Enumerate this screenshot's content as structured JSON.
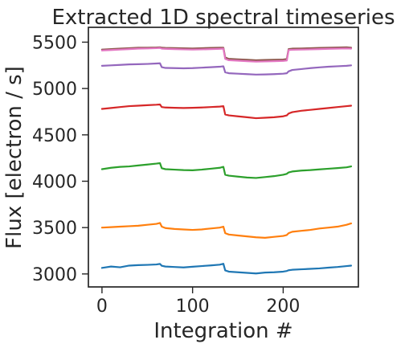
{
  "chart_data": {
    "type": "line",
    "title": "Extracted 1D spectral timeseries",
    "xlabel": "Integration #",
    "ylabel": "Flux [electron / s]",
    "xlim": [
      -15,
      283
    ],
    "ylim": [
      2860,
      5660
    ],
    "x_ticks": [
      0,
      100,
      200
    ],
    "y_ticks": [
      3000,
      3500,
      4000,
      4500,
      5000,
      5500
    ],
    "grid": false,
    "legend": "none",
    "series": [
      {
        "color": "#1f77b4",
        "x": [
          0,
          10,
          20,
          30,
          40,
          50,
          60,
          64,
          66,
          70,
          80,
          90,
          100,
          110,
          120,
          130,
          134,
          136,
          140,
          150,
          160,
          170,
          180,
          190,
          200,
          204,
          206,
          210,
          220,
          230,
          240,
          250,
          260,
          270,
          275
        ],
        "y": [
          3065,
          3080,
          3072,
          3090,
          3095,
          3098,
          3102,
          3108,
          3088,
          3080,
          3075,
          3070,
          3078,
          3085,
          3092,
          3100,
          3110,
          3038,
          3025,
          3018,
          3012,
          3005,
          3015,
          3018,
          3025,
          3032,
          3040,
          3045,
          3050,
          3055,
          3060,
          3068,
          3075,
          3085,
          3090
        ]
      },
      {
        "color": "#ff7f0e",
        "x": [
          0,
          10,
          20,
          30,
          40,
          50,
          60,
          64,
          66,
          70,
          80,
          90,
          100,
          110,
          120,
          130,
          134,
          136,
          140,
          150,
          160,
          170,
          180,
          190,
          200,
          204,
          206,
          210,
          220,
          230,
          240,
          250,
          260,
          270,
          275
        ],
        "y": [
          3500,
          3505,
          3510,
          3515,
          3520,
          3530,
          3540,
          3550,
          3510,
          3495,
          3485,
          3480,
          3475,
          3480,
          3490,
          3500,
          3510,
          3440,
          3425,
          3415,
          3405,
          3395,
          3390,
          3400,
          3410,
          3420,
          3440,
          3455,
          3465,
          3475,
          3490,
          3500,
          3510,
          3530,
          3545
        ]
      },
      {
        "color": "#2ca02c",
        "x": [
          0,
          10,
          20,
          30,
          40,
          50,
          60,
          64,
          66,
          70,
          80,
          90,
          100,
          110,
          120,
          130,
          134,
          136,
          140,
          150,
          160,
          170,
          180,
          190,
          200,
          204,
          206,
          210,
          220,
          230,
          240,
          250,
          260,
          270,
          275
        ],
        "y": [
          4130,
          4145,
          4155,
          4160,
          4170,
          4180,
          4190,
          4195,
          4140,
          4130,
          4125,
          4120,
          4118,
          4125,
          4135,
          4145,
          4155,
          4070,
          4060,
          4050,
          4040,
          4035,
          4045,
          4055,
          4070,
          4080,
          4095,
          4105,
          4115,
          4120,
          4128,
          4135,
          4142,
          4150,
          4160
        ]
      },
      {
        "color": "#d62728",
        "x": [
          0,
          10,
          20,
          30,
          40,
          50,
          60,
          64,
          66,
          70,
          80,
          90,
          100,
          110,
          120,
          130,
          134,
          136,
          140,
          150,
          160,
          170,
          180,
          190,
          200,
          204,
          206,
          210,
          220,
          230,
          240,
          250,
          260,
          270,
          275
        ],
        "y": [
          4780,
          4790,
          4800,
          4810,
          4815,
          4820,
          4825,
          4828,
          4800,
          4795,
          4792,
          4790,
          4792,
          4795,
          4800,
          4805,
          4810,
          4720,
          4710,
          4700,
          4690,
          4680,
          4685,
          4690,
          4700,
          4710,
          4730,
          4745,
          4760,
          4770,
          4780,
          4790,
          4800,
          4810,
          4815
        ]
      },
      {
        "color": "#9467bd",
        "x": [
          0,
          10,
          20,
          30,
          40,
          50,
          60,
          64,
          66,
          70,
          80,
          90,
          100,
          110,
          120,
          130,
          134,
          136,
          140,
          150,
          160,
          170,
          180,
          190,
          200,
          204,
          206,
          210,
          220,
          230,
          240,
          250,
          260,
          270,
          275
        ],
        "y": [
          5245,
          5250,
          5255,
          5260,
          5262,
          5265,
          5270,
          5272,
          5230,
          5222,
          5220,
          5218,
          5220,
          5225,
          5230,
          5235,
          5240,
          5175,
          5165,
          5160,
          5155,
          5150,
          5152,
          5155,
          5160,
          5165,
          5185,
          5200,
          5210,
          5220,
          5228,
          5235,
          5240,
          5245,
          5250
        ]
      },
      {
        "color": "#8c564b",
        "x": [
          0,
          10,
          20,
          30,
          40,
          50,
          60,
          64,
          66,
          70,
          80,
          90,
          100,
          110,
          120,
          130,
          134,
          136,
          140,
          150,
          160,
          170,
          180,
          190,
          200,
          204,
          206,
          210,
          220,
          230,
          240,
          250,
          260,
          270,
          275
        ],
        "y": [
          5420,
          5425,
          5430,
          5435,
          5440,
          5440,
          5442,
          5445,
          5440,
          5438,
          5436,
          5434,
          5432,
          5435,
          5438,
          5440,
          5440,
          5335,
          5320,
          5315,
          5310,
          5305,
          5308,
          5310,
          5312,
          5318,
          5425,
          5430,
          5432,
          5435,
          5438,
          5440,
          5442,
          5445,
          5440
        ]
      },
      {
        "color": "#e377c2",
        "x": [
          0,
          10,
          20,
          30,
          40,
          50,
          60,
          64,
          66,
          70,
          80,
          90,
          100,
          110,
          120,
          130,
          134,
          136,
          140,
          150,
          160,
          170,
          180,
          190,
          200,
          204,
          206,
          210,
          220,
          230,
          240,
          250,
          260,
          270,
          275
        ],
        "y": [
          5410,
          5415,
          5420,
          5425,
          5430,
          5432,
          5435,
          5438,
          5430,
          5428,
          5425,
          5422,
          5420,
          5422,
          5425,
          5428,
          5430,
          5320,
          5305,
          5300,
          5295,
          5290,
          5292,
          5295,
          5298,
          5302,
          5415,
          5418,
          5420,
          5422,
          5425,
          5428,
          5430,
          5432,
          5430
        ]
      }
    ]
  }
}
